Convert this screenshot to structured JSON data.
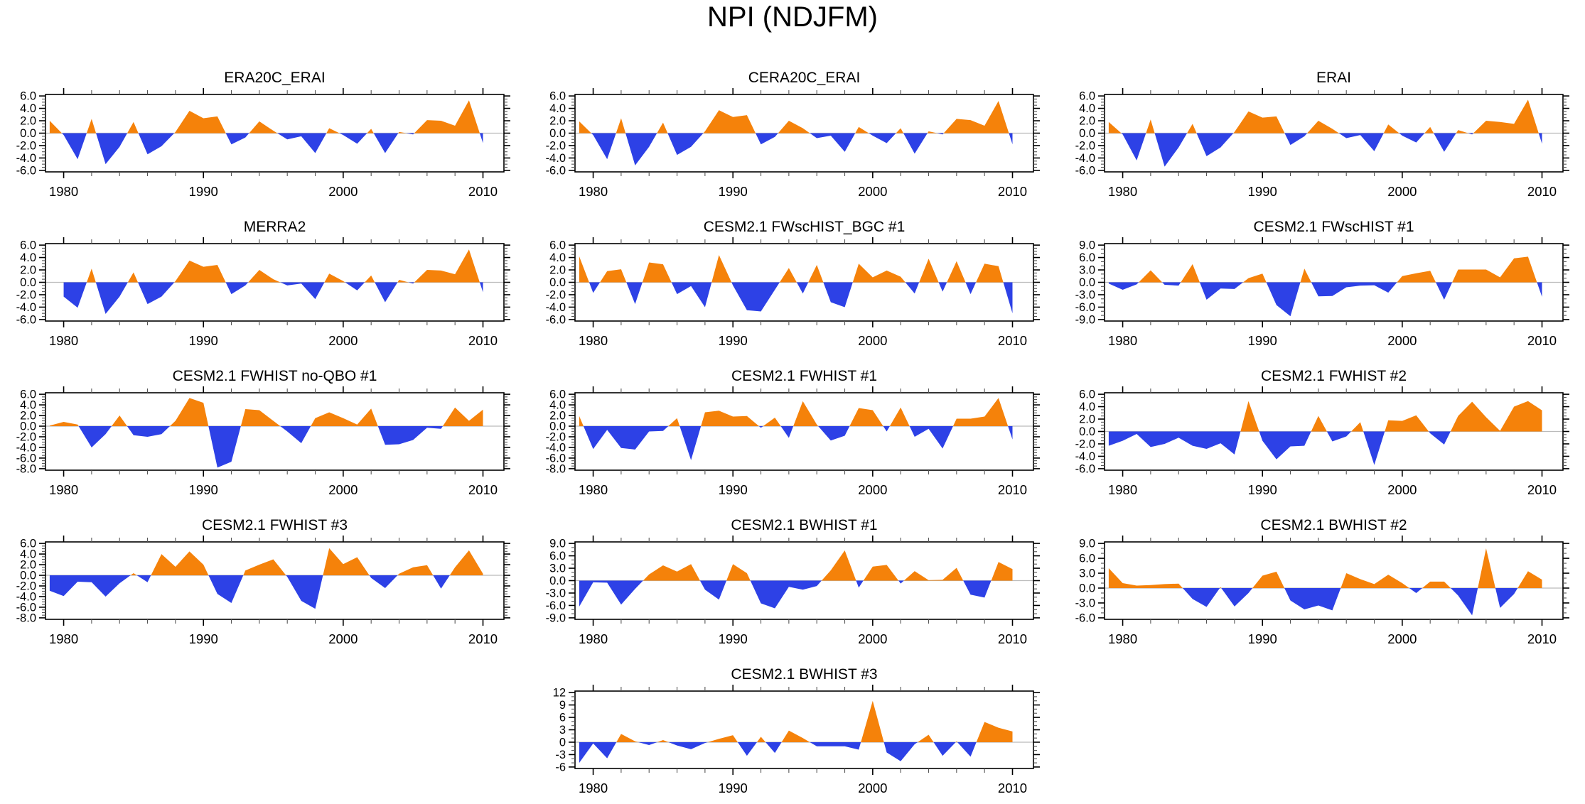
{
  "title": "NPI (NDJFM)",
  "colors": {
    "positive_fill": "#F5820A",
    "negative_fill": "#2D41E6",
    "zero_line": "#BBBBBB",
    "frame": "#000000",
    "minor_tick": "#555555"
  },
  "x_axis": {
    "tick_labels": [
      "1980",
      "1990",
      "2000",
      "2010"
    ],
    "major_ticks": [
      1980,
      1990,
      2000,
      2010
    ],
    "minor_step_years": 2,
    "range": [
      1978.7,
      2011.5
    ]
  },
  "chart_data": [
    {
      "type": "area",
      "title": "ERA20C_ERAI",
      "col": 1,
      "x_start": 1979,
      "ylim": [
        -6,
        6
      ],
      "ytick_step": 2,
      "yminor_step": 0.5,
      "ytick_labels": [
        "6.0",
        "4.0",
        "2.0",
        "0.0",
        "-2.0",
        "-4.0",
        "-6.0"
      ],
      "values": [
        2.0,
        -0.3,
        -4.2,
        2.3,
        -5.0,
        -2.2,
        1.8,
        -3.4,
        -2.1,
        0.2,
        3.6,
        2.4,
        2.7,
        -1.8,
        -0.7,
        1.9,
        0.4,
        -1.0,
        -0.5,
        -3.2,
        0.8,
        -0.3,
        -1.7,
        0.7,
        -3.2,
        0.2,
        -0.2,
        2.1,
        2.0,
        1.2,
        5.3,
        -1.6
      ]
    },
    {
      "type": "area",
      "title": "CERA20C_ERAI",
      "col": 2,
      "x_start": 1979,
      "ylim": [
        -6,
        6
      ],
      "ytick_step": 2,
      "yminor_step": 0.5,
      "ytick_labels": [
        "6.0",
        "4.0",
        "2.0",
        "0.0",
        "-2.0",
        "-4.0",
        "-6.0"
      ],
      "values": [
        1.9,
        -0.3,
        -4.2,
        2.4,
        -5.2,
        -2.2,
        1.7,
        -3.5,
        -2.2,
        0.3,
        3.7,
        2.6,
        2.9,
        -1.8,
        -0.6,
        2.0,
        0.8,
        -0.8,
        -0.4,
        -3.0,
        1.0,
        -0.4,
        -1.6,
        0.8,
        -3.3,
        0.3,
        -0.2,
        2.3,
        2.1,
        1.2,
        5.2,
        -1.8
      ]
    },
    {
      "type": "area",
      "title": "ERAI",
      "col": 3,
      "x_start": 1979,
      "ylim": [
        -6,
        6
      ],
      "ytick_step": 2,
      "yminor_step": 0.5,
      "ytick_labels": [
        "6.0",
        "4.0",
        "2.0",
        "0.0",
        "-2.0",
        "-4.0",
        "-6.0"
      ],
      "values": [
        1.8,
        -0.2,
        -4.4,
        2.2,
        -5.4,
        -2.3,
        1.5,
        -3.7,
        -2.3,
        0.2,
        3.5,
        2.5,
        2.7,
        -1.9,
        -0.5,
        2.0,
        0.7,
        -0.8,
        -0.3,
        -2.9,
        1.4,
        -0.4,
        -1.5,
        1.0,
        -3.0,
        0.5,
        -0.2,
        2.0,
        1.8,
        1.5,
        5.4,
        -1.7
      ]
    },
    {
      "type": "area",
      "title": "MERRA2",
      "col": 1,
      "x_start": 1980,
      "ylim": [
        -6,
        6
      ],
      "ytick_step": 2,
      "yminor_step": 0.5,
      "ytick_labels": [
        "6.0",
        "4.0",
        "2.0",
        "0.0",
        "-2.0",
        "-4.0",
        "-6.0"
      ],
      "values": [
        -2.3,
        -4.1,
        2.2,
        -5.1,
        -2.3,
        1.6,
        -3.5,
        -2.3,
        0.2,
        3.5,
        2.5,
        2.8,
        -1.9,
        -0.5,
        2.0,
        0.5,
        -0.5,
        -0.2,
        -2.7,
        1.4,
        0.2,
        -1.3,
        1.1,
        -3.2,
        0.4,
        -0.2,
        2.0,
        1.9,
        1.3,
        5.3,
        -1.6
      ]
    },
    {
      "type": "area",
      "title": "CESM2.1 FWscHIST_BGC #1",
      "col": 2,
      "x_start": 1979,
      "ylim": [
        -6,
        6
      ],
      "ytick_step": 2,
      "yminor_step": 0.5,
      "ytick_labels": [
        "6.0",
        "4.0",
        "2.0",
        "0.0",
        "-2.0",
        "-4.0",
        "-6.0"
      ],
      "values": [
        4.2,
        -1.7,
        1.8,
        2.1,
        -3.5,
        3.2,
        2.9,
        -1.9,
        -0.6,
        -4.0,
        4.4,
        -0.5,
        -4.5,
        -4.7,
        -1.2,
        2.3,
        -1.8,
        2.8,
        -3.2,
        -4.0,
        3.0,
        0.8,
        1.9,
        0.9,
        -1.8,
        3.8,
        -1.5,
        3.4,
        -1.9,
        3.0,
        2.6,
        -5.0
      ]
    },
    {
      "type": "area",
      "title": "CESM2.1 FWscHIST #1",
      "col": 3,
      "x_start": 1979,
      "ylim": [
        -9,
        9
      ],
      "ytick_step": 3,
      "yminor_step": 1,
      "ytick_labels": [
        "9.0",
        "6.0",
        "3.0",
        "0.0",
        "-3.0",
        "-6.0",
        "-9.0"
      ],
      "values": [
        -0.3,
        -1.8,
        -0.5,
        2.9,
        -0.6,
        -0.8,
        4.4,
        -4.2,
        -1.5,
        -1.6,
        1.0,
        2.1,
        -5.5,
        -8.2,
        3.3,
        -3.4,
        -3.3,
        -1.2,
        -0.8,
        -0.7,
        -2.5,
        1.5,
        2.2,
        2.8,
        -4.2,
        3.1,
        3.1,
        3.1,
        1.2,
        5.8,
        6.2,
        -3.5
      ]
    },
    {
      "type": "area",
      "title": "CESM2.1 FWHIST no-QBO #1",
      "col": 1,
      "x_start": 1979,
      "ylim": [
        -8,
        6
      ],
      "ytick_step": 2,
      "yminor_step": 0.5,
      "ytick_labels": [
        "6.0",
        "4.0",
        "2.0",
        "0.0",
        "-2.0",
        "-4.0",
        "-6.0",
        "-8.0"
      ],
      "values": [
        0.1,
        0.8,
        0.3,
        -4.0,
        -1.5,
        2.0,
        -1.7,
        -2.0,
        -1.5,
        1.0,
        5.3,
        4.4,
        -7.8,
        -6.7,
        3.2,
        3.0,
        1.0,
        -1.0,
        -3.2,
        1.5,
        2.6,
        1.5,
        0.3,
        3.3,
        -3.5,
        -3.4,
        -2.6,
        -0.3,
        -0.5,
        3.5,
        1.0,
        3.1
      ]
    },
    {
      "type": "area",
      "title": "CESM2.1 FWHIST #1",
      "col": 2,
      "x_start": 1979,
      "ylim": [
        -8,
        6
      ],
      "ytick_step": 2,
      "yminor_step": 0.5,
      "ytick_labels": [
        "6.0",
        "4.0",
        "2.0",
        "0.0",
        "-2.0",
        "-4.0",
        "-6.0",
        "-8.0"
      ],
      "values": [
        1.9,
        -4.3,
        -0.7,
        -4.1,
        -4.4,
        -1.0,
        -0.9,
        1.5,
        -6.4,
        2.6,
        2.9,
        1.8,
        1.9,
        -0.3,
        1.6,
        -2.2,
        4.7,
        0.3,
        -2.7,
        -1.8,
        3.4,
        3.0,
        -1.0,
        3.5,
        -2.0,
        -0.5,
        -4.2,
        1.4,
        1.4,
        1.8,
        5.3,
        -2.5
      ]
    },
    {
      "type": "area",
      "title": "CESM2.1 FWHIST #2",
      "col": 3,
      "x_start": 1979,
      "ylim": [
        -6,
        6
      ],
      "ytick_step": 2,
      "yminor_step": 0.5,
      "ytick_labels": [
        "6.0",
        "4.0",
        "2.0",
        "0.0",
        "-2.0",
        "-4.0",
        "-6.0"
      ],
      "values": [
        -2.3,
        -1.5,
        -0.4,
        -2.5,
        -2.0,
        -1.0,
        -2.3,
        -2.8,
        -1.9,
        -3.7,
        4.9,
        -1.5,
        -4.5,
        -2.4,
        -2.3,
        2.5,
        -1.6,
        -0.8,
        1.5,
        -5.4,
        1.8,
        1.7,
        2.6,
        -0.3,
        -2.1,
        2.5,
        4.8,
        2.3,
        0.1,
        4.0,
        4.9,
        3.4
      ]
    },
    {
      "type": "area",
      "title": "CESM2.1 FWHIST #3",
      "col": 1,
      "x_start": 1979,
      "ylim": [
        -8,
        6
      ],
      "ytick_step": 2,
      "yminor_step": 0.5,
      "ytick_labels": [
        "6.0",
        "4.0",
        "2.0",
        "0.0",
        "-2.0",
        "-4.0",
        "-6.0",
        "-8.0"
      ],
      "values": [
        -2.9,
        -3.9,
        -1.2,
        -1.3,
        -4.0,
        -1.5,
        0.4,
        -1.3,
        4.0,
        1.6,
        4.5,
        2.0,
        -3.5,
        -5.2,
        0.9,
        2.0,
        3.0,
        -0.3,
        -4.8,
        -6.3,
        5.1,
        2.1,
        3.4,
        -0.5,
        -2.4,
        0.3,
        1.5,
        1.9,
        -2.5,
        1.5,
        4.7,
        0.3
      ]
    },
    {
      "type": "area",
      "title": "CESM2.1 BWHIST #1",
      "col": 2,
      "x_start": 1979,
      "ylim": [
        -9,
        9
      ],
      "ytick_step": 3,
      "yminor_step": 1,
      "ytick_labels": [
        "9.0",
        "6.0",
        "3.0",
        "0.0",
        "-3.0",
        "-6.0",
        "-9.0"
      ],
      "values": [
        -6.3,
        -0.4,
        -0.5,
        -5.8,
        -2.0,
        1.5,
        3.7,
        2.2,
        4.0,
        -2.2,
        -4.6,
        4.0,
        1.8,
        -5.5,
        -6.7,
        -1.5,
        -2.2,
        -1.3,
        2.5,
        7.3,
        -1.7,
        3.4,
        3.8,
        -0.7,
        2.3,
        0.1,
        0.2,
        3.1,
        -3.4,
        -4.1,
        4.5,
        2.8
      ]
    },
    {
      "type": "area",
      "title": "CESM2.1 BWHIST #2",
      "col": 3,
      "x_start": 1979,
      "ylim": [
        -6,
        9
      ],
      "ytick_step": 3,
      "yminor_step": 1,
      "ytick_labels": [
        "9.0",
        "6.0",
        "3.0",
        "0.0",
        "-3.0",
        "-6.0"
      ],
      "values": [
        4.0,
        1.0,
        0.5,
        0.6,
        0.8,
        0.9,
        -2.2,
        -3.8,
        0.2,
        -3.7,
        -1.0,
        2.5,
        3.3,
        -2.5,
        -4.3,
        -3.5,
        -4.5,
        3.0,
        1.8,
        0.8,
        2.7,
        1.0,
        -1.0,
        1.3,
        1.3,
        -1.5,
        -5.5,
        8.0,
        -4.0,
        -1.2,
        3.4,
        1.7
      ]
    },
    {
      "type": "area",
      "title": "CESM2.1 BWHIST #3",
      "col": 2,
      "x_start": 1979,
      "ylim": [
        -6,
        12
      ],
      "ytick_step": 3,
      "yminor_step": 1,
      "ytick_labels": [
        "12",
        "9",
        "6",
        "3",
        "0",
        "-3",
        "-6"
      ],
      "values": [
        -5.0,
        -0.3,
        -3.9,
        2.0,
        0.2,
        -0.7,
        0.5,
        -0.8,
        -1.7,
        -0.2,
        0.8,
        1.7,
        -3.3,
        1.3,
        -2.6,
        2.8,
        1.0,
        -1.0,
        -1.0,
        -1.0,
        -1.8,
        10.0,
        -2.5,
        -4.6,
        -0.5,
        1.8,
        -3.3,
        0.2,
        -3.5,
        4.9,
        3.5,
        2.6
      ]
    }
  ]
}
